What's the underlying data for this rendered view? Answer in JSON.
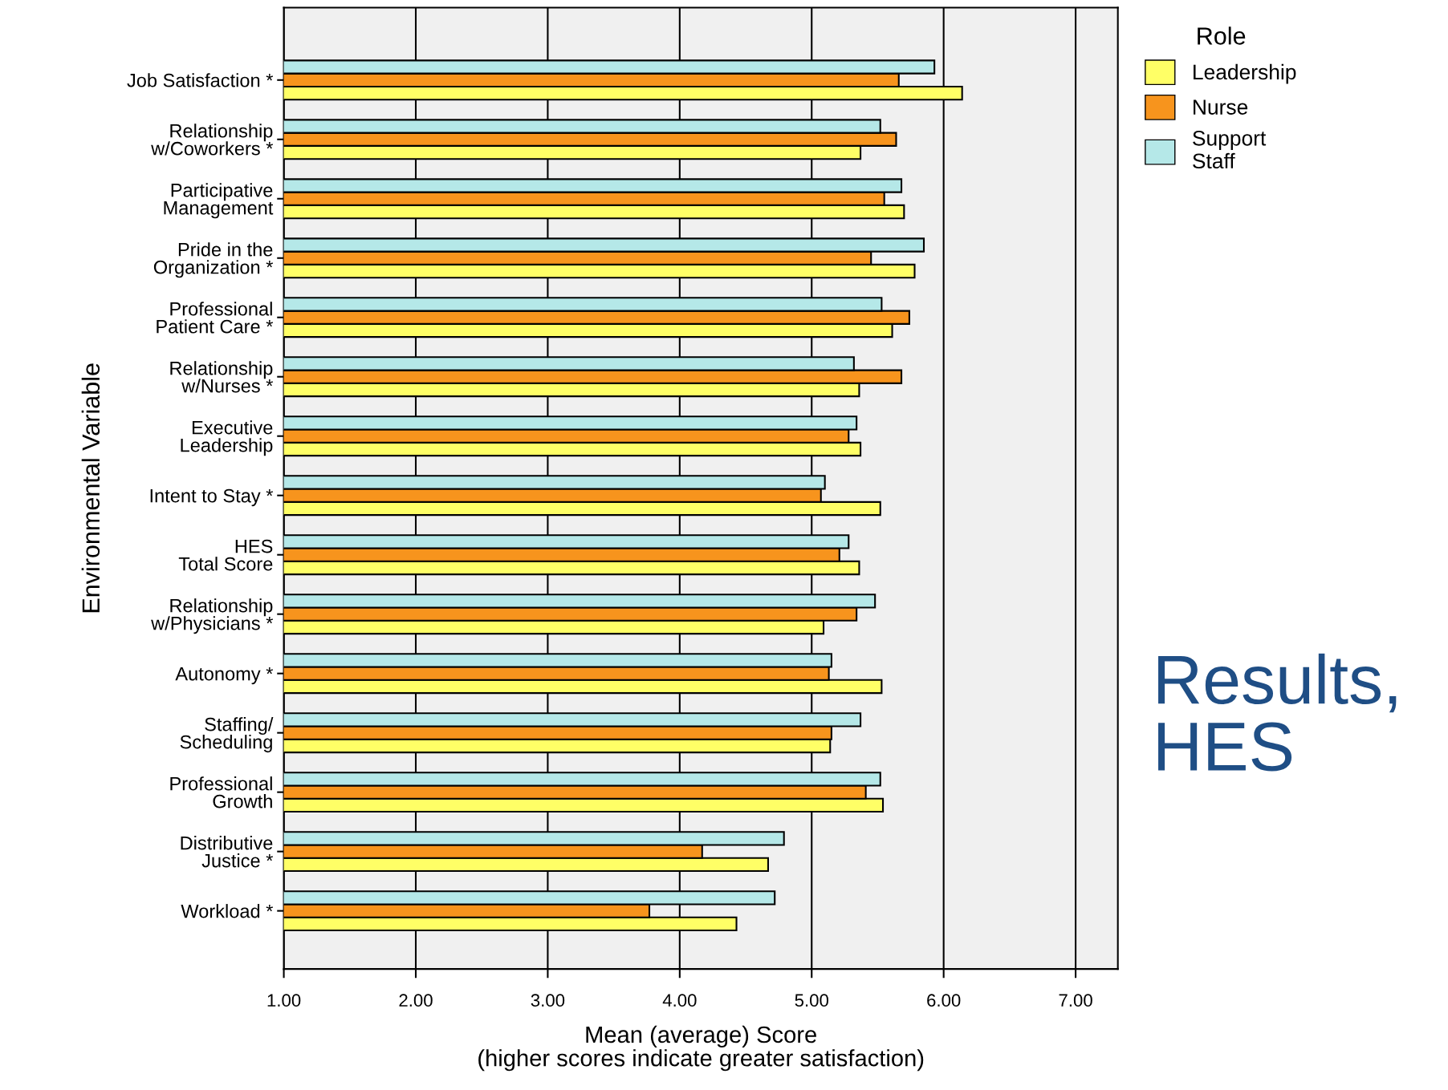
{
  "chart_data": {
    "type": "bar",
    "orientation": "horizontal",
    "categories": [
      "Job Satisfaction *",
      "Relationship\nw/Coworkers *",
      "Participative\nManagement",
      "Pride in the\nOrganization *",
      "Professional\nPatient Care *",
      "Relationship\nw/Nurses *",
      "Executive\nLeadership",
      "Intent to Stay *",
      "HES\nTotal Score",
      "Relationship\nw/Physicians *",
      "Autonomy *",
      "Staffing/\nScheduling",
      "Professional\nGrowth",
      "Distributive\nJustice *",
      "Workload *"
    ],
    "series": [
      {
        "name": "Leadership",
        "color": "#ffff66",
        "values": [
          6.14,
          5.37,
          5.7,
          5.78,
          5.61,
          5.36,
          5.37,
          5.52,
          5.36,
          5.09,
          5.53,
          5.14,
          5.54,
          4.67,
          4.43
        ]
      },
      {
        "name": "Nurse",
        "color": "#f7941d",
        "values": [
          5.66,
          5.64,
          5.55,
          5.45,
          5.74,
          5.68,
          5.28,
          5.07,
          5.21,
          5.34,
          5.13,
          5.15,
          5.41,
          4.17,
          3.77
        ]
      },
      {
        "name": "Support\nStaff",
        "color": "#b5e8e8",
        "values": [
          5.93,
          5.52,
          5.68,
          5.85,
          5.53,
          5.32,
          5.34,
          5.1,
          5.28,
          5.48,
          5.15,
          5.37,
          5.52,
          4.79,
          4.72
        ]
      }
    ],
    "xlabel": "Mean (average) Score\n(higher scores indicate greater satisfaction)",
    "ylabel": "Environmental Variable",
    "legend_title": "Role",
    "legend": "top right",
    "xlim": [
      1.0,
      7.32
    ],
    "xticks": [
      {
        "value": 1,
        "label": "1.00"
      },
      {
        "value": 2,
        "label": "2.00"
      },
      {
        "value": 3,
        "label": "3.00"
      },
      {
        "value": 4,
        "label": "4.00"
      },
      {
        "value": 5,
        "label": "5.00"
      },
      {
        "value": 6,
        "label": "6.00"
      },
      {
        "value": 7,
        "label": "7.00"
      }
    ],
    "grid": "x",
    "annotations": [
      "Results,\nHES"
    ]
  }
}
